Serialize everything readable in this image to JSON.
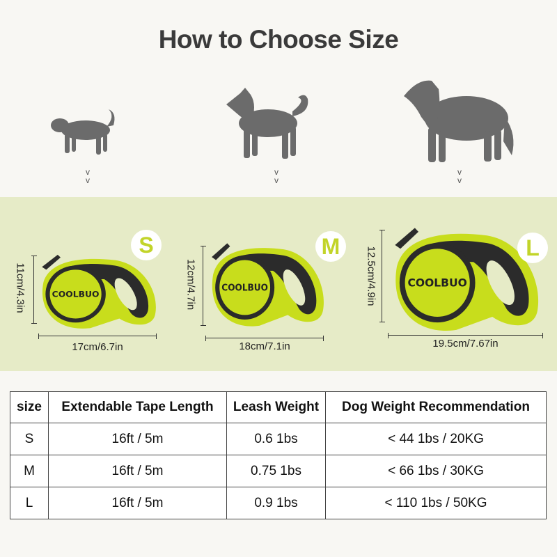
{
  "title": "How to Choose Size",
  "chevron": "v",
  "brand_logo": "COOLBUO",
  "colors": {
    "lime": "#c8dd1c",
    "band": "#e6ebc7",
    "dark": "#2b2b2b",
    "dog": "#6b6b6b"
  },
  "sizes": [
    {
      "badge": "S",
      "height_label": "11cm/4.3in",
      "width_label": "17cm/6.7in"
    },
    {
      "badge": "M",
      "height_label": "12cm/4.7in",
      "width_label": "18cm/7.1in"
    },
    {
      "badge": "L",
      "height_label": "12.5cm/4.9in",
      "width_label": "19.5cm/7.67in"
    }
  ],
  "table": {
    "headers": [
      "size",
      "Extendable Tape Length",
      "Leash Weight",
      "Dog Weight Recommendation"
    ],
    "rows": [
      [
        "S",
        "16ft / 5m",
        "0.6 1bs",
        "< 44 1bs / 20KG"
      ],
      [
        "M",
        "16ft / 5m",
        "0.75 1bs",
        "< 66 1bs / 30KG"
      ],
      [
        "L",
        "16ft / 5m",
        "0.9 1bs",
        "< 110 1bs / 50KG"
      ]
    ]
  }
}
